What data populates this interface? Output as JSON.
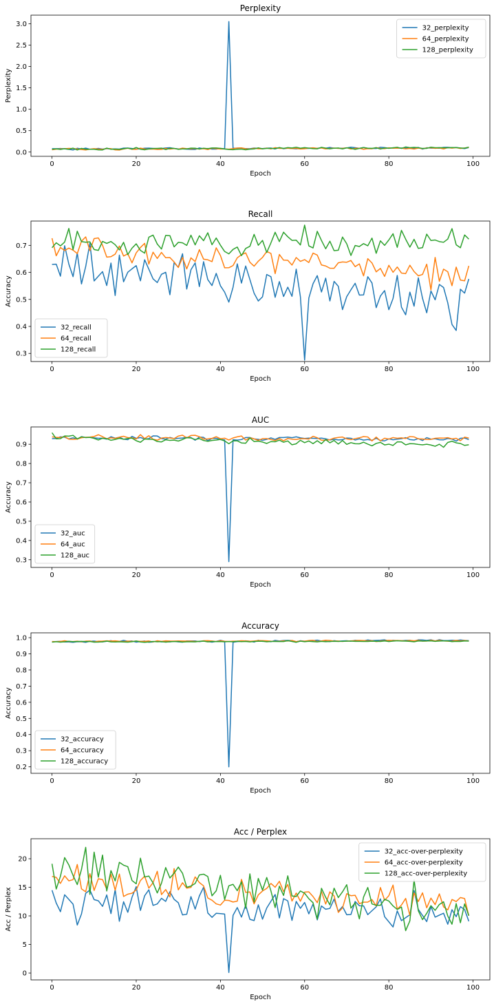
{
  "colors": {
    "32": "#1f77b4",
    "64": "#ff7f0e",
    "128": "#2ca02c",
    "legend_border": "#cccccc",
    "axis": "#000000"
  },
  "chart_data": [
    {
      "type": "line",
      "title": "Perplexity",
      "xlabel": "Epoch",
      "ylabel": "Perplexity",
      "xlim": [
        -5,
        104
      ],
      "ylim": [
        -0.1,
        3.2
      ],
      "xticks": [
        0,
        20,
        40,
        60,
        80,
        100
      ],
      "yticks": [
        0.0,
        0.5,
        1.0,
        1.5,
        2.0,
        2.5,
        3.0
      ],
      "ytick_labels": [
        "0.0",
        "0.5",
        "1.0",
        "1.5",
        "2.0",
        "2.5",
        "3.0"
      ],
      "legend": "top-right",
      "series": [
        {
          "name": "32_perplexity",
          "color": "#1f77b4",
          "base": 0.07,
          "trend": 0.03,
          "noise": 0.012,
          "spikes": [
            [
              42,
              3.05
            ]
          ],
          "seed": 1
        },
        {
          "name": "64_perplexity",
          "color": "#ff7f0e",
          "base": 0.07,
          "trend": 0.02,
          "noise": 0.01,
          "spikes": [],
          "seed": 2
        },
        {
          "name": "128_perplexity",
          "color": "#2ca02c",
          "base": 0.065,
          "trend": 0.04,
          "noise": 0.012,
          "spikes": [],
          "seed": 3
        }
      ]
    },
    {
      "type": "line",
      "title": "Recall",
      "xlabel": "Epoch",
      "ylabel": "Accuracy",
      "xlim": [
        -5,
        104
      ],
      "ylim": [
        0.27,
        0.79
      ],
      "xticks": [
        0,
        20,
        40,
        60,
        80,
        100
      ],
      "yticks": [
        0.3,
        0.4,
        0.5,
        0.6,
        0.7
      ],
      "ytick_labels": [
        "0.3",
        "0.4",
        "0.5",
        "0.6",
        "0.7"
      ],
      "legend": "bottom-left",
      "series": [
        {
          "name": "32_recall",
          "color": "#1f77b4",
          "base": 0.64,
          "trend": -0.16,
          "noise": 0.045,
          "spikes": [
            [
              60,
              0.275
            ],
            [
              42,
              0.49
            ],
            [
              96,
              0.385
            ]
          ],
          "seed": 4
        },
        {
          "name": "64_recall",
          "color": "#ff7f0e",
          "base": 0.69,
          "trend": -0.1,
          "noise": 0.025,
          "spikes": [
            [
              90,
              0.535
            ]
          ],
          "seed": 5
        },
        {
          "name": "128_recall",
          "color": "#2ca02c",
          "base": 0.71,
          "trend": 0.0,
          "noise": 0.022,
          "spikes": [
            [
              60,
              0.775
            ],
            [
              95,
              0.762
            ]
          ],
          "seed": 6
        }
      ]
    },
    {
      "type": "line",
      "title": "AUC",
      "xlabel": "Epoch",
      "ylabel": "Accuracy",
      "xlim": [
        -5,
        104
      ],
      "ylim": [
        0.26,
        0.99
      ],
      "xticks": [
        0,
        20,
        40,
        60,
        80,
        100
      ],
      "yticks": [
        0.3,
        0.4,
        0.5,
        0.6,
        0.7,
        0.8,
        0.9
      ],
      "ytick_labels": [
        "0.3",
        "0.4",
        "0.5",
        "0.6",
        "0.7",
        "0.8",
        "0.9"
      ],
      "legend": "bottom-left",
      "series": [
        {
          "name": "32_auc",
          "color": "#1f77b4",
          "base": 0.935,
          "trend": -0.01,
          "noise": 0.005,
          "spikes": [
            [
              42,
              0.29
            ]
          ],
          "seed": 7
        },
        {
          "name": "64_auc",
          "color": "#ff7f0e",
          "base": 0.935,
          "trend": -0.01,
          "noise": 0.007,
          "spikes": [
            [
              21,
              0.95
            ]
          ],
          "seed": 8
        },
        {
          "name": "128_auc",
          "color": "#2ca02c",
          "base": 0.935,
          "trend": -0.04,
          "noise": 0.008,
          "spikes": [
            [
              0,
              0.96
            ]
          ],
          "seed": 9
        }
      ]
    },
    {
      "type": "line",
      "title": "Accuracy",
      "xlabel": "Epoch",
      "ylabel": "Accuracy",
      "xlim": [
        -5,
        104
      ],
      "ylim": [
        0.16,
        1.03
      ],
      "xticks": [
        0,
        20,
        40,
        60,
        80,
        100
      ],
      "yticks": [
        0.2,
        0.3,
        0.4,
        0.5,
        0.6,
        0.7,
        0.8,
        0.9,
        1.0
      ],
      "ytick_labels": [
        "0.2",
        "0.3",
        "0.4",
        "0.5",
        "0.6",
        "0.7",
        "0.8",
        "0.9",
        "1.0"
      ],
      "legend": "bottom-left",
      "series": [
        {
          "name": "32_accuracy",
          "color": "#1f77b4",
          "base": 0.975,
          "trend": 0.008,
          "noise": 0.003,
          "spikes": [
            [
              42,
              0.2
            ]
          ],
          "seed": 10
        },
        {
          "name": "64_accuracy",
          "color": "#ff7f0e",
          "base": 0.977,
          "trend": 0.005,
          "noise": 0.002,
          "spikes": [],
          "seed": 11
        },
        {
          "name": "128_accuracy",
          "color": "#2ca02c",
          "base": 0.974,
          "trend": 0.005,
          "noise": 0.002,
          "spikes": [],
          "seed": 12
        }
      ]
    },
    {
      "type": "line",
      "title": "Acc / Perplex",
      "xlabel": "Epoch",
      "ylabel": "Acc / Perplex",
      "xlim": [
        -5,
        104
      ],
      "ylim": [
        -1.2,
        23.5
      ],
      "xticks": [
        0,
        20,
        40,
        60,
        80,
        100
      ],
      "yticks": [
        0,
        5,
        10,
        15,
        20
      ],
      "ytick_labels": [
        "0",
        "5",
        "10",
        "15",
        "20"
      ],
      "legend": "top-right",
      "series": [
        {
          "name": "32_acc-over-perplexity",
          "color": "#1f77b4",
          "base": 13.0,
          "trend": -2.8,
          "noise": 1.5,
          "spikes": [
            [
              42,
              0.1
            ],
            [
              6,
              8.4
            ]
          ],
          "seed": 13
        },
        {
          "name": "64_acc-over-perplexity",
          "color": "#ff7f0e",
          "base": 16.0,
          "trend": -4.0,
          "noise": 1.3,
          "spikes": [
            [
              6,
              19.0
            ]
          ],
          "seed": 14
        },
        {
          "name": "128_acc-over-perplexity",
          "color": "#2ca02c",
          "base": 18.5,
          "trend": -8.0,
          "noise": 1.6,
          "spikes": [
            [
              8,
              22.0
            ],
            [
              21,
              20.1
            ],
            [
              86,
              16.3
            ]
          ],
          "seed": 15
        }
      ]
    }
  ]
}
